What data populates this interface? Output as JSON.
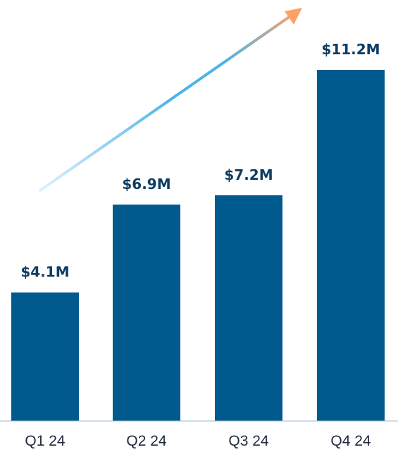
{
  "chart_data": {
    "type": "bar",
    "categories": [
      "Q1 24",
      "Q2 24",
      "Q3 24",
      "Q4 24"
    ],
    "values": [
      4.1,
      6.9,
      7.2,
      11.2
    ],
    "data_labels": [
      "$4.1M",
      "$6.9M",
      "$7.2M",
      "$11.2M"
    ],
    "title": "",
    "xlabel": "",
    "ylabel": "",
    "ylim": [
      0,
      11.2
    ],
    "grid": false,
    "legend": "none",
    "trend_arrow": true
  },
  "colors": {
    "bar": "#005A8D",
    "data_label": "#0E3D63",
    "tick_label": "#1F2A3C",
    "baseline": "#9EB9CF",
    "arrow_start": "#DDF1FC",
    "arrow_mid": "#4DB3EA",
    "arrow_end": "#FBA268"
  }
}
